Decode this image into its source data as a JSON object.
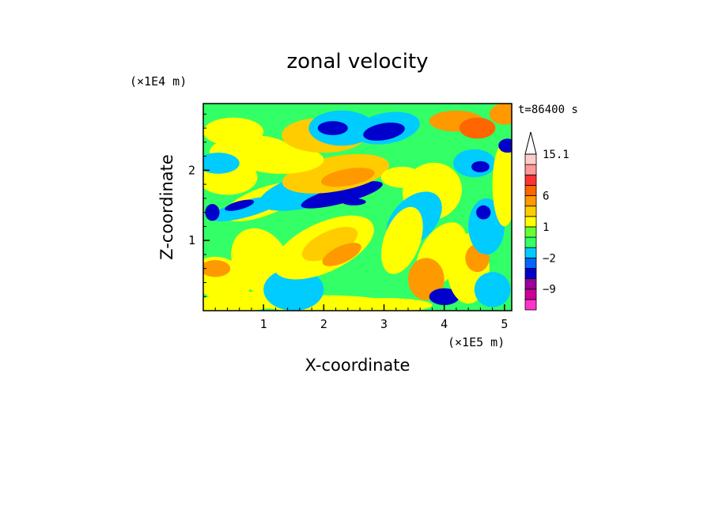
{
  "chart_data": {
    "type": "heatmap",
    "title": "zonal velocity",
    "xlabel": "X-coordinate",
    "ylabel": "Z-coordinate",
    "x_scale_label": "(×1E5 m)",
    "y_scale_label": "(×1E4 m)",
    "time_label": "t=86400 s",
    "xlim": [
      0,
      5.12
    ],
    "ylim": [
      0,
      2.95
    ],
    "x_ticks": [
      "1",
      "2",
      "3",
      "4",
      "5"
    ],
    "y_ticks": [
      "1",
      "2"
    ],
    "colorbar": {
      "levels": [
        -15,
        -12,
        -9,
        -6,
        -3,
        -2,
        -1,
        0,
        1,
        2,
        3,
        6,
        9,
        12,
        15.1
      ],
      "colors": [
        "#ff33cc",
        "#cc0099",
        "#990099",
        "#0000cc",
        "#0066ff",
        "#00ccff",
        "#33ff66",
        "#66ff33",
        "#ffff00",
        "#ffcc00",
        "#ff9900",
        "#ff6600",
        "#ff3333",
        "#ff9999",
        "#ffcccc"
      ],
      "tick_labels": [
        {
          "value": 15.1,
          "label": "15.1"
        },
        {
          "value": 6,
          "label": "6"
        },
        {
          "value": 1,
          "label": "1"
        },
        {
          "value": -2,
          "label": "−2"
        },
        {
          "value": -9,
          "label": "−9"
        }
      ]
    }
  }
}
